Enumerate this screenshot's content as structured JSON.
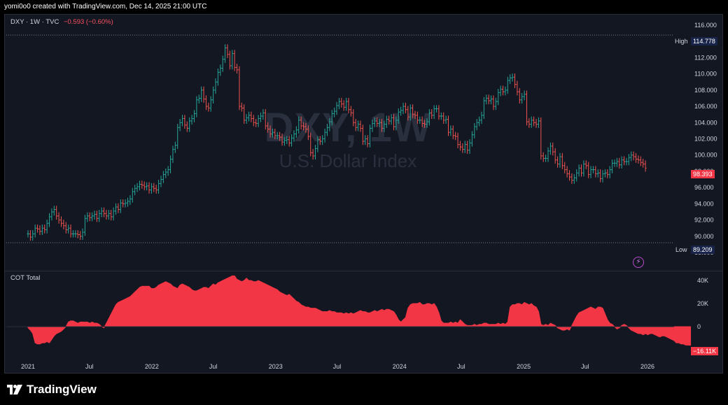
{
  "header": {
    "text": "yomi0o0 created with TradingView.com, Dec 14, 2025 21:00 UTC"
  },
  "legend": {
    "symbol": "DXY · 1W · TVC",
    "change": "−0.593 (−0.60%)"
  },
  "watermark": {
    "symbol": "DXY, 1W",
    "name": "U.S. Dollar Index"
  },
  "brand": {
    "name": "TradingView"
  },
  "indicator": {
    "name": "COT Total"
  },
  "markers": {
    "high_label": "High",
    "high_value": "114.778",
    "low_label": "Low",
    "low_value": "89.209",
    "last_price": "98.393",
    "cot_last": "−16.11K"
  },
  "colors": {
    "background": "#131722",
    "up": "#26a69a",
    "down": "#ef5350",
    "cot_fill": "#f23645",
    "last_price_tag": "#f23645",
    "marker_tag": "#172348"
  },
  "chart_data": [
    {
      "type": "line",
      "description_kind": "weekly OHLC bar chart (approximated by weekly closes)",
      "x_ticks": [
        "2021",
        "Jul",
        "2022",
        "Jul",
        "2023",
        "Jul",
        "2024",
        "Jul",
        "2025",
        "Jul",
        "2026"
      ],
      "y_ticks": [
        "116.000",
        "114.000",
        "112.000",
        "110.000",
        "108.000",
        "106.000",
        "104.000",
        "102.000",
        "100.000",
        "98.000",
        "96.000",
        "94.000",
        "92.000",
        "90.000",
        "88.000"
      ],
      "ylim": [
        87.5,
        117
      ],
      "x_start": "2021-01-01",
      "closes": [
        90.3,
        89.9,
        90.3,
        91,
        90.9,
        90.6,
        91,
        90.8,
        91.6,
        92.4,
        93,
        93.3,
        92.5,
        92,
        91.6,
        91.3,
        90.8,
        91,
        90.3,
        90.3,
        90.3,
        90.2,
        90,
        90.5,
        92.2,
        92.5,
        92.3,
        92.5,
        92.7,
        92.2,
        92.8,
        93.1,
        92.8,
        92.5,
        92.8,
        92.4,
        93.1,
        93.6,
        93.3,
        94.1,
        94,
        94.1,
        94.3,
        94.6,
        95.5,
        95.9,
        96.1,
        96.4,
        96.3,
        96.1,
        96.2,
        95.7,
        96.1,
        95.9,
        95.7,
        96.5,
        97,
        97.6,
        97.9,
        98.2,
        99.5,
        100.7,
        101.2,
        103.4,
        104,
        104.5,
        103.7,
        103.3,
        104.2,
        104.5,
        105.1,
        106.8,
        107,
        108,
        106.9,
        106,
        105.8,
        106.8,
        108,
        109,
        110.2,
        110.7,
        111.8,
        113.2,
        112.4,
        111,
        112.5,
        110.8,
        110.5,
        106,
        105.8,
        104.3,
        104.6,
        104.9,
        104.5,
        104,
        103.9,
        104.5,
        104.8,
        105.2,
        103.6,
        103.2,
        102.6,
        102.8,
        102.4,
        102.4,
        102.2,
        101.6,
        101.8,
        101.9,
        101.5,
        102.1,
        102.6,
        103.1,
        104.3,
        103.6,
        103.5,
        103.2,
        102.3,
        100.3,
        99.9,
        100.8,
        101.9,
        101.7,
        102,
        102.8,
        103.4,
        104.1,
        105.1,
        105.4,
        106.1,
        106.6,
        106.3,
        105.9,
        106.6,
        105.6,
        105.2,
        104,
        103.4,
        103.8,
        103.3,
        101.7,
        102,
        101.4,
        103.3,
        103.9,
        104.2,
        103.9,
        104,
        103.3,
        103.8,
        104.4,
        104.2,
        104.6,
        103.5,
        104.3,
        105.3,
        105.5,
        106,
        105.6,
        104.7,
        105.8,
        105,
        104.9,
        104.3,
        104.3,
        103.9,
        103.8,
        104.1,
        105.2,
        104.9,
        105.7,
        105.7,
        104.8,
        104.8,
        104.3,
        104.4,
        102.8,
        103.2,
        102.4,
        102.3,
        101.3,
        101,
        100.7,
        101.3,
        100.6,
        101.5,
        102.5,
        103.5,
        104,
        104.3,
        104.9,
        106.7,
        107,
        106.7,
        106.9,
        106,
        106.6,
        107.7,
        108.1,
        107.8,
        108,
        109.2,
        109.5,
        109.6,
        108.7,
        107.8,
        106.8,
        107.2,
        107.5,
        104.1,
        103.8,
        104.3,
        104,
        103.8,
        104.2,
        99.9,
        99.6,
        99.6,
        100.5,
        101.1,
        100.4,
        99.4,
        98.9,
        99.8,
        98.7,
        98.2,
        97.7,
        97.3,
        96.9,
        97.2,
        97.8,
        98.4,
        97.8,
        98.9,
        98.7,
        97.6,
        98.2,
        98.2,
        97.7,
        97.8,
        97.1,
        97.7,
        97.8,
        97.6,
        98.2,
        99,
        99,
        99.2,
        98.8,
        99.4,
        99.2,
        99.2,
        99.7,
        100,
        99.8,
        99.5,
        99.4,
        99.1,
        98.9,
        98.4
      ],
      "high": 114.778,
      "low": 89.209,
      "last": 98.393,
      "title": "",
      "xlabel": "",
      "ylabel": ""
    },
    {
      "type": "area",
      "name": "COT Total",
      "y_ticks": [
        "40K",
        "20K",
        "0",
        "−20K"
      ],
      "ylim": [
        -30000,
        50000
      ],
      "x_start": "2021-01-01",
      "values": [
        -1000,
        -3000,
        -6000,
        -14000,
        -15000,
        -15000,
        -14000,
        -14000,
        -13000,
        -14000,
        -11000,
        -8000,
        -6000,
        -5000,
        -4000,
        -2000,
        0,
        4000,
        5000,
        5000,
        4000,
        3000,
        4000,
        4000,
        4000,
        4000,
        3000,
        4000,
        3000,
        3000,
        2000,
        0,
        -1000,
        3000,
        7000,
        11000,
        15000,
        19000,
        21000,
        22000,
        23000,
        24000,
        25000,
        26000,
        28000,
        30000,
        32000,
        34000,
        35000,
        35000,
        35000,
        35000,
        33000,
        33000,
        34000,
        36000,
        37000,
        38000,
        39000,
        38000,
        37000,
        35000,
        34000,
        33000,
        36000,
        37000,
        36000,
        35000,
        34000,
        32000,
        31000,
        31000,
        32000,
        33000,
        34000,
        34000,
        33000,
        35000,
        37000,
        36000,
        38000,
        39000,
        40000,
        41000,
        42000,
        43000,
        44000,
        44000,
        41000,
        40000,
        39000,
        40000,
        42000,
        40000,
        40000,
        39000,
        39000,
        40000,
        39000,
        38000,
        37000,
        36000,
        35000,
        34000,
        33000,
        32000,
        30000,
        29000,
        28000,
        27000,
        28000,
        26000,
        24000,
        22000,
        21000,
        19000,
        18000,
        17000,
        17000,
        16000,
        16000,
        16000,
        15000,
        14000,
        13000,
        13000,
        13000,
        14000,
        13000,
        13000,
        12000,
        12000,
        12000,
        11000,
        12000,
        11000,
        12000,
        11000,
        12000,
        13000,
        14000,
        13000,
        13000,
        12000,
        12000,
        13000,
        14000,
        13000,
        14000,
        15000,
        14000,
        15000,
        15000,
        14000,
        13000,
        10000,
        6000,
        4000,
        6000,
        8000,
        16000,
        19000,
        20000,
        20000,
        20000,
        21000,
        19000,
        19000,
        20000,
        20000,
        19000,
        20000,
        17000,
        12000,
        5000,
        3000,
        3000,
        3000,
        4000,
        3000,
        4000,
        3000,
        6000,
        4000,
        2000,
        1000,
        1000,
        1000,
        2000,
        1000,
        2000,
        2000,
        3000,
        3000,
        2000,
        2000,
        2000,
        2000,
        3000,
        2000,
        3000,
        2000,
        4000,
        17000,
        19000,
        19000,
        20000,
        20000,
        19000,
        21000,
        20000,
        19000,
        20000,
        18000,
        17000,
        13000,
        2000,
        1000,
        2000,
        1000,
        3000,
        2000,
        1000,
        -1000,
        -2000,
        -3000,
        -3000,
        -2000,
        -3000,
        1000,
        5000,
        9000,
        12000,
        13000,
        14000,
        15000,
        16000,
        17000,
        16000,
        15000,
        17000,
        17000,
        16000,
        11000,
        6000,
        3000,
        2000,
        0,
        -2000,
        -1000,
        1000,
        2000,
        1000,
        -1000,
        -3000,
        -4000,
        -5000,
        -6000,
        -6000,
        -7000,
        -6000,
        -7000,
        -6000,
        -6000,
        -7000,
        -8000,
        -9000,
        -8000,
        -8000,
        -9000,
        -10000,
        -11000,
        -12000,
        -14000,
        -14000,
        -15000,
        -15000,
        -16000,
        -16000,
        -16110
      ],
      "last": -16110,
      "title": "",
      "xlabel": "",
      "ylabel": ""
    }
  ]
}
